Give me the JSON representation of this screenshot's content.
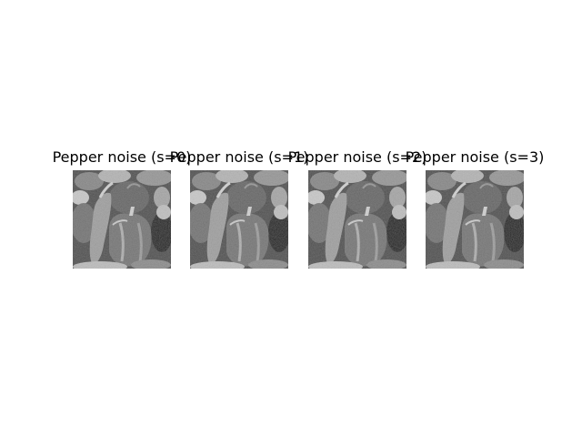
{
  "figure": {
    "background": "#ffffff",
    "panels": [
      {
        "title": "Pepper noise (s=0)",
        "noise_seed": 0
      },
      {
        "title": "Pepper noise (s=1)",
        "noise_seed": 1
      },
      {
        "title": "Pepper noise (s=2)",
        "noise_seed": 2
      },
      {
        "title": "Pepper noise (s=3)",
        "noise_seed": 3
      }
    ],
    "image_subject": "grayscale photo of bell peppers",
    "colormap": "grayscale"
  }
}
